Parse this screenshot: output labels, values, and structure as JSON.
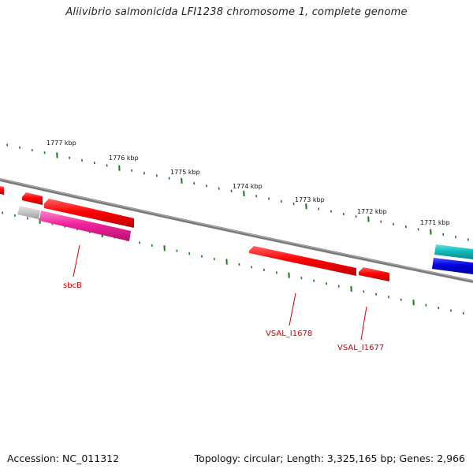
{
  "title": "Aliivibrio salmonicida LFI1238 chromosome 1, complete genome",
  "footer": {
    "accession": "Accession: NC_011312",
    "summary": "Topology: circular; Length: 3,325,165 bp; Genes: 2,966"
  },
  "scale": {
    "unit": "kbp",
    "labels": [
      "1777 kbp",
      "1776 kbp",
      "1775 kbp",
      "1774 kbp",
      "1773 kbp",
      "1772 kbp",
      "1771 kbp"
    ]
  },
  "gene_labels": [
    "sbcB",
    "VSAL_I1678",
    "VSAL_I1677"
  ],
  "colors": {
    "backbone": "#808080",
    "tick": "#1a7a1a",
    "gene_red": "#ff0000",
    "gene_magenta": "#ee2299",
    "gene_grey": "#bbbbbb",
    "gene_cyan": "#11bbbb",
    "gene_blue": "#0000dd",
    "label": "#cc0000"
  }
}
